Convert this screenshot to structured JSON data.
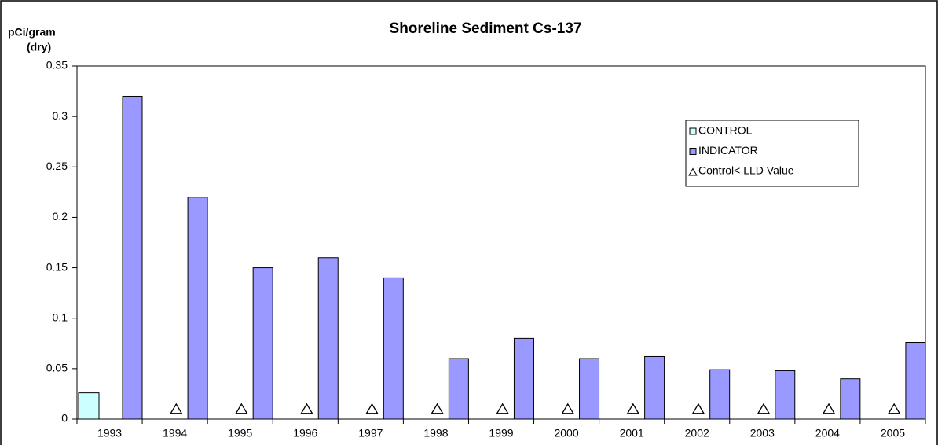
{
  "chart_data": {
    "type": "bar",
    "title": "Shoreline Sediment Cs-137",
    "y_label": [
      "pCi/gram",
      "(dry)"
    ],
    "categories": [
      "1993",
      "1994",
      "1995",
      "1996",
      "1997",
      "1998",
      "1999",
      "2000",
      "2001",
      "2002",
      "2003",
      "2004",
      "2005"
    ],
    "series": [
      {
        "name": "CONTROL",
        "color": "#ccffff",
        "mark": "bar",
        "values": [
          0.026,
          null,
          null,
          null,
          null,
          null,
          null,
          null,
          null,
          null,
          null,
          null,
          null
        ]
      },
      {
        "name": "INDICATOR",
        "color": "#9999ff",
        "mark": "bar",
        "values": [
          0.32,
          0.22,
          0.15,
          0.16,
          0.14,
          0.06,
          0.08,
          0.06,
          0.062,
          0.049,
          0.048,
          0.04,
          0.076
        ]
      },
      {
        "name": "Control< LLD Value",
        "color": "#ffffff",
        "mark": "triangle",
        "values": [
          null,
          0.01,
          0.01,
          0.01,
          0.01,
          0.01,
          0.01,
          0.01,
          0.01,
          0.01,
          0.01,
          0.01,
          0.01
        ]
      }
    ],
    "ylim": [
      0,
      0.35
    ],
    "yticks": [
      0,
      0.05,
      0.1,
      0.15,
      0.2,
      0.25,
      0.3,
      0.35
    ],
    "grid": false,
    "legend": "upper right"
  }
}
